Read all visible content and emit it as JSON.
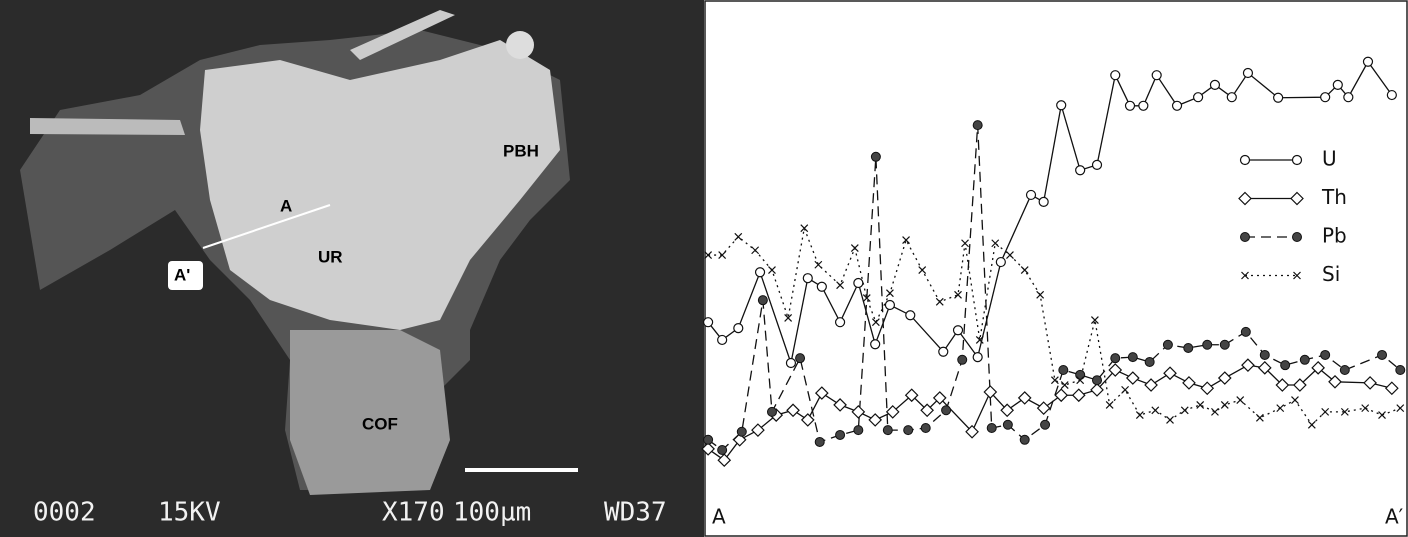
{
  "image": {
    "labels": [
      "A",
      "UR",
      "PBH",
      "A'",
      "COF"
    ],
    "caption": [
      "0002",
      "15KV",
      "X170",
      "100µm",
      "WD37"
    ]
  },
  "chart_data": {
    "type": "line",
    "x_endpoints": [
      "A",
      "A′"
    ],
    "xlim": [
      0,
      100
    ],
    "ylim": [
      0,
      100
    ],
    "series": [
      {
        "name": "U",
        "color": "#111111",
        "marker": "circle",
        "dash": "solid",
        "x": [
          0.3,
          2.3,
          4.6,
          7.7,
          12.1,
          14.5,
          16.5,
          19.1,
          21.7,
          24.1,
          26.2,
          29.1,
          33.8,
          35.9,
          38.7,
          42.0,
          46.3,
          48.1,
          50.6,
          53.3,
          55.7,
          58.3,
          60.4,
          62.3,
          64.2,
          67.1,
          70.1,
          72.5,
          74.9,
          77.2,
          81.5,
          88.2,
          90.0,
          91.5,
          94.3,
          97.7
        ],
        "values": [
          40.0,
          36.7,
          38.9,
          49.3,
          32.4,
          48.2,
          46.6,
          40.0,
          47.3,
          35.9,
          43.2,
          41.3,
          34.5,
          38.5,
          33.5,
          51.2,
          63.7,
          62.4,
          80.4,
          68.3,
          69.3,
          86.0,
          80.3,
          80.3,
          86.0,
          80.3,
          81.9,
          84.2,
          81.9,
          86.4,
          81.8,
          81.9,
          84.2,
          81.9,
          88.5,
          82.3
        ]
      },
      {
        "name": "Th",
        "color": "#111111",
        "marker": "diamond",
        "dash": "solid",
        "x": [
          0.3,
          2.6,
          4.8,
          7.4,
          10.0,
          12.4,
          14.5,
          16.5,
          19.1,
          21.7,
          24.1,
          26.6,
          29.3,
          31.5,
          33.3,
          37.9,
          40.5,
          42.9,
          45.4,
          48.1,
          50.6,
          53.1,
          55.7,
          58.3,
          60.8,
          63.4,
          66.1,
          68.8,
          71.4,
          73.9,
          77.2,
          79.6,
          82.1,
          84.6,
          87.2,
          89.6,
          94.6,
          97.7
        ],
        "values": [
          16.4,
          14.3,
          18.1,
          19.9,
          22.7,
          23.6,
          21.8,
          26.8,
          24.6,
          23.3,
          21.8,
          23.3,
          26.4,
          23.6,
          25.9,
          19.6,
          27.0,
          23.6,
          25.9,
          24.0,
          26.4,
          26.4,
          27.4,
          31.1,
          29.6,
          28.3,
          30.5,
          28.7,
          27.7,
          29.6,
          32.0,
          31.5,
          28.3,
          28.3,
          31.5,
          28.9,
          28.7,
          27.7
        ]
      },
      {
        "name": "Pb",
        "color": "#111111",
        "marker": "dot",
        "dash": "dashed",
        "x": [
          0.3,
          2.3,
          5.1,
          8.1,
          9.4,
          13.4,
          16.2,
          19.1,
          21.7,
          24.2,
          25.9,
          28.8,
          31.3,
          34.2,
          36.5,
          38.7,
          40.7,
          43.0,
          45.4,
          48.3,
          50.9,
          53.3,
          55.7,
          58.3,
          60.8,
          63.2,
          65.8,
          68.7,
          71.4,
          73.9,
          76.9,
          79.6,
          82.5,
          85.3,
          88.2,
          91.0,
          96.3,
          98.9
        ],
        "values": [
          18.1,
          16.2,
          19.6,
          44.1,
          23.3,
          33.3,
          17.7,
          19.0,
          19.9,
          70.8,
          19.9,
          19.9,
          20.3,
          23.6,
          33.0,
          76.7,
          20.3,
          20.9,
          18.1,
          20.9,
          31.1,
          30.2,
          29.2,
          33.3,
          33.5,
          32.6,
          35.8,
          35.2,
          35.8,
          35.8,
          38.2,
          33.9,
          32.0,
          33.0,
          33.9,
          31.1,
          33.9,
          31.1
        ]
      },
      {
        "name": "Si",
        "color": "#111111",
        "marker": "cross",
        "dash": "dotted",
        "x": [
          0.3,
          2.3,
          4.6,
          7.0,
          9.4,
          11.7,
          14.0,
          16.0,
          19.1,
          21.2,
          22.9,
          24.2,
          26.2,
          28.5,
          30.8,
          33.3,
          35.9,
          36.9,
          39.0,
          41.2,
          43.3,
          45.4,
          47.6,
          49.7,
          51.1,
          53.3,
          55.4,
          57.5,
          59.7,
          61.8,
          64.0,
          66.1,
          68.2,
          70.4,
          72.5,
          73.9,
          76.1,
          78.9,
          81.8,
          83.9,
          86.3,
          88.2,
          91.0,
          93.9,
          96.3,
          98.9
        ],
        "values": [
          52.5,
          52.5,
          55.9,
          53.4,
          49.7,
          40.8,
          57.5,
          50.7,
          46.9,
          53.8,
          44.5,
          40.0,
          45.4,
          55.3,
          49.7,
          43.8,
          45.1,
          54.7,
          36.7,
          54.7,
          52.5,
          49.7,
          45.1,
          29.2,
          28.3,
          29.2,
          40.4,
          24.6,
          27.4,
          22.7,
          23.6,
          21.8,
          23.6,
          24.6,
          23.3,
          24.6,
          25.5,
          22.2,
          24.0,
          25.5,
          20.9,
          23.3,
          23.3,
          24.0,
          22.7,
          24.0
        ]
      }
    ]
  }
}
